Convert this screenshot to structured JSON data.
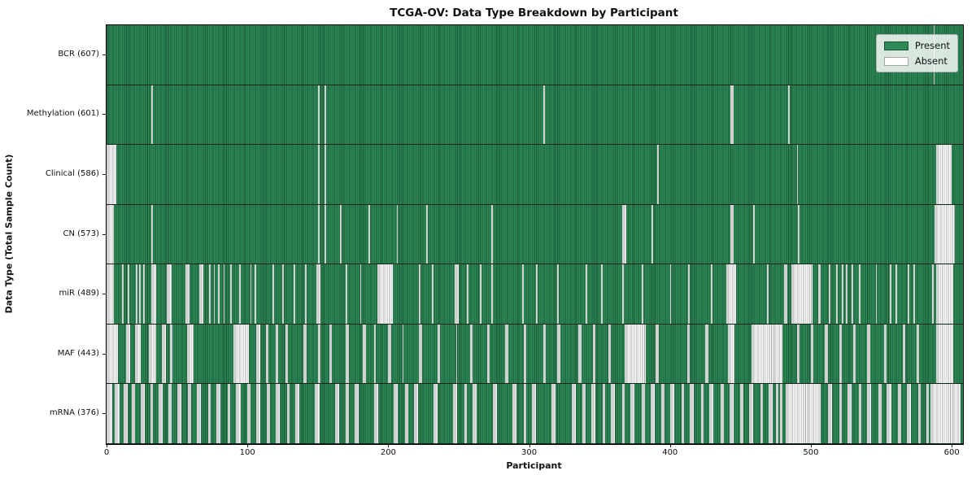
{
  "chart_data": {
    "type": "heatmap",
    "title": "TCGA-OV: Data Type Breakdown by Participant",
    "xlabel": "Participant",
    "ylabel": "Data Type (Total Sample Count)",
    "x_ticks": [
      0,
      100,
      200,
      300,
      400,
      500,
      600
    ],
    "x_range": [
      0,
      608
    ],
    "n_participants": 608,
    "grid": false,
    "legend": {
      "position": "upper right",
      "entries": [
        {
          "label": "Present",
          "color": "#2e8b57",
          "edge": "#1b5233"
        },
        {
          "label": "Absent",
          "color": "#fdfdfd",
          "edge": "#a5a5a5"
        }
      ]
    },
    "colors": {
      "present_fill": "#2e8b57",
      "present_edge": "#1b5233",
      "absent_fill": "#fdfdfd",
      "absent_edge": "#a5a5a5",
      "row_separator": "#141e16",
      "background": "#ffffff"
    },
    "rows": [
      {
        "key": "bcr",
        "label": "BCR (607)",
        "count": 607,
        "absent_ranges": [
          [
            587,
            587
          ]
        ]
      },
      {
        "key": "methylation",
        "label": "Methylation (601)",
        "count": 601,
        "absent_ranges": [
          [
            32,
            32
          ],
          [
            150,
            150
          ],
          [
            155,
            155
          ],
          [
            310,
            310
          ],
          [
            443,
            444
          ],
          [
            484,
            484
          ]
        ]
      },
      {
        "key": "clinical",
        "label": "Clinical (586)",
        "count": 586,
        "absent_ranges": [
          [
            0,
            6
          ],
          [
            150,
            150
          ],
          [
            155,
            155
          ],
          [
            391,
            391
          ],
          [
            490,
            490
          ],
          [
            589,
            599
          ]
        ]
      },
      {
        "key": "cn",
        "label": "CN (573)",
        "count": 573,
        "absent_ranges": [
          [
            0,
            4
          ],
          [
            32,
            32
          ],
          [
            150,
            150
          ],
          [
            155,
            155
          ],
          [
            166,
            166
          ],
          [
            186,
            186
          ],
          [
            206,
            206
          ],
          [
            227,
            227
          ],
          [
            273,
            273
          ],
          [
            366,
            368
          ],
          [
            387,
            387
          ],
          [
            443,
            444
          ],
          [
            459,
            459
          ],
          [
            491,
            491
          ],
          [
            588,
            601
          ]
        ]
      },
      {
        "key": "mir",
        "label": "miR (489)",
        "count": 489,
        "absent_ranges": [
          [
            0,
            4
          ],
          [
            11,
            11
          ],
          [
            15,
            15
          ],
          [
            21,
            21
          ],
          [
            23,
            23
          ],
          [
            26,
            26
          ],
          [
            32,
            34
          ],
          [
            43,
            45
          ],
          [
            56,
            58
          ],
          [
            66,
            68
          ],
          [
            73,
            73
          ],
          [
            76,
            76
          ],
          [
            79,
            79
          ],
          [
            83,
            83
          ],
          [
            88,
            88
          ],
          [
            94,
            94
          ],
          [
            102,
            102
          ],
          [
            105,
            105
          ],
          [
            118,
            118
          ],
          [
            125,
            125
          ],
          [
            133,
            133
          ],
          [
            141,
            141
          ],
          [
            149,
            151
          ],
          [
            170,
            170
          ],
          [
            180,
            180
          ],
          [
            192,
            202
          ],
          [
            222,
            222
          ],
          [
            231,
            231
          ],
          [
            247,
            249
          ],
          [
            256,
            256
          ],
          [
            265,
            265
          ],
          [
            273,
            273
          ],
          [
            295,
            295
          ],
          [
            305,
            305
          ],
          [
            320,
            320
          ],
          [
            340,
            340
          ],
          [
            351,
            351
          ],
          [
            366,
            366
          ],
          [
            380,
            380
          ],
          [
            400,
            400
          ],
          [
            413,
            413
          ],
          [
            429,
            429
          ],
          [
            440,
            446
          ],
          [
            469,
            469
          ],
          [
            481,
            482
          ],
          [
            486,
            500
          ],
          [
            505,
            506
          ],
          [
            513,
            513
          ],
          [
            518,
            518
          ],
          [
            522,
            522
          ],
          [
            525,
            525
          ],
          [
            529,
            529
          ],
          [
            534,
            534
          ],
          [
            546,
            546
          ],
          [
            556,
            556
          ],
          [
            560,
            560
          ],
          [
            569,
            569
          ],
          [
            573,
            573
          ],
          [
            586,
            586
          ],
          [
            589,
            600
          ]
        ]
      },
      {
        "key": "maf",
        "label": "MAF (443)",
        "count": 443,
        "absent_ranges": [
          [
            0,
            7
          ],
          [
            14,
            16
          ],
          [
            20,
            23
          ],
          [
            30,
            34
          ],
          [
            39,
            41
          ],
          [
            45,
            46
          ],
          [
            57,
            61
          ],
          [
            90,
            100
          ],
          [
            106,
            108
          ],
          [
            113,
            114
          ],
          [
            120,
            121
          ],
          [
            127,
            128
          ],
          [
            140,
            141
          ],
          [
            150,
            151
          ],
          [
            158,
            159
          ],
          [
            170,
            171
          ],
          [
            182,
            183
          ],
          [
            190,
            190
          ],
          [
            200,
            201
          ],
          [
            210,
            210
          ],
          [
            222,
            223
          ],
          [
            235,
            236
          ],
          [
            248,
            248
          ],
          [
            258,
            259
          ],
          [
            270,
            271
          ],
          [
            283,
            284
          ],
          [
            296,
            297
          ],
          [
            310,
            311
          ],
          [
            320,
            321
          ],
          [
            335,
            336
          ],
          [
            345,
            346
          ],
          [
            356,
            357
          ],
          [
            368,
            382
          ],
          [
            390,
            391
          ],
          [
            412,
            413
          ],
          [
            425,
            426
          ],
          [
            441,
            445
          ],
          [
            458,
            479
          ],
          [
            490,
            491
          ],
          [
            500,
            501
          ],
          [
            510,
            511
          ],
          [
            520,
            521
          ],
          [
            530,
            531
          ],
          [
            540,
            541
          ],
          [
            552,
            553
          ],
          [
            565,
            566
          ],
          [
            575,
            576
          ],
          [
            589,
            600
          ]
        ]
      },
      {
        "key": "mrna",
        "label": "mRNA (376)",
        "count": 376,
        "absent_ranges": [
          [
            0,
            3
          ],
          [
            6,
            8
          ],
          [
            12,
            14
          ],
          [
            18,
            19
          ],
          [
            24,
            26
          ],
          [
            31,
            32
          ],
          [
            37,
            39
          ],
          [
            44,
            45
          ],
          [
            50,
            52
          ],
          [
            58,
            59
          ],
          [
            64,
            66
          ],
          [
            72,
            73
          ],
          [
            78,
            80
          ],
          [
            86,
            87
          ],
          [
            92,
            94
          ],
          [
            100,
            101
          ],
          [
            106,
            108
          ],
          [
            114,
            115
          ],
          [
            120,
            122
          ],
          [
            128,
            129
          ],
          [
            134,
            136
          ],
          [
            148,
            150
          ],
          [
            162,
            164
          ],
          [
            170,
            171
          ],
          [
            176,
            178
          ],
          [
            190,
            192
          ],
          [
            204,
            206
          ],
          [
            212,
            213
          ],
          [
            218,
            220
          ],
          [
            232,
            234
          ],
          [
            246,
            248
          ],
          [
            254,
            255
          ],
          [
            260,
            262
          ],
          [
            274,
            276
          ],
          [
            288,
            290
          ],
          [
            296,
            297
          ],
          [
            302,
            304
          ],
          [
            316,
            318
          ],
          [
            330,
            332
          ],
          [
            338,
            339
          ],
          [
            344,
            346
          ],
          [
            352,
            353
          ],
          [
            358,
            360
          ],
          [
            366,
            367
          ],
          [
            372,
            374
          ],
          [
            380,
            381
          ],
          [
            386,
            388
          ],
          [
            394,
            395
          ],
          [
            400,
            402
          ],
          [
            408,
            409
          ],
          [
            414,
            416
          ],
          [
            422,
            423
          ],
          [
            428,
            430
          ],
          [
            436,
            437
          ],
          [
            442,
            444
          ],
          [
            450,
            451
          ],
          [
            456,
            458
          ],
          [
            464,
            465
          ],
          [
            470,
            472
          ],
          [
            475,
            476
          ],
          [
            478,
            479
          ],
          [
            482,
            506
          ],
          [
            512,
            514
          ],
          [
            520,
            521
          ],
          [
            526,
            528
          ],
          [
            534,
            535
          ],
          [
            540,
            542
          ],
          [
            548,
            549
          ],
          [
            554,
            556
          ],
          [
            562,
            563
          ],
          [
            568,
            570
          ],
          [
            576,
            577
          ],
          [
            582,
            583
          ],
          [
            585,
            605
          ]
        ]
      }
    ]
  }
}
